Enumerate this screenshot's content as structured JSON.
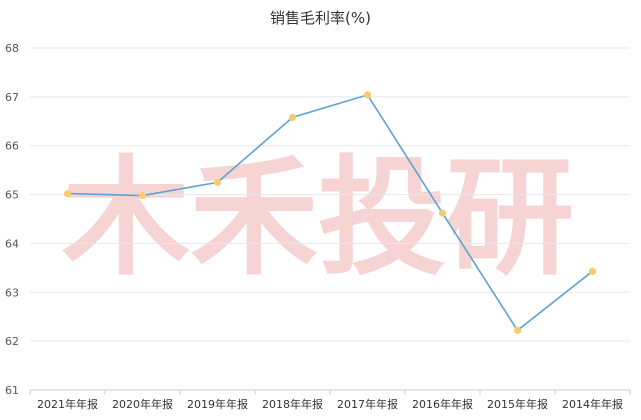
{
  "chart_data": {
    "type": "line",
    "title": "销售毛利率(%)",
    "categories": [
      "2021年年报",
      "2020年年报",
      "2019年年报",
      "2018年年报",
      "2017年年报",
      "2016年年报",
      "2015年年报",
      "2014年年报"
    ],
    "series": [
      {
        "values": [
          65.02,
          64.98,
          65.25,
          66.58,
          67.04,
          64.62,
          62.22,
          63.43
        ]
      }
    ],
    "ylim": [
      61,
      68
    ],
    "yticks": [
      61,
      62,
      63,
      64,
      65,
      66,
      67,
      68
    ],
    "grid": true,
    "xlabel": "",
    "ylabel": "",
    "colors": {
      "line": "#5ba3d6",
      "marker": "#f7cd6b",
      "grid": "#e8e8e8"
    }
  },
  "watermark": {
    "text": "木禾投研",
    "color": "#f7d4d4"
  }
}
